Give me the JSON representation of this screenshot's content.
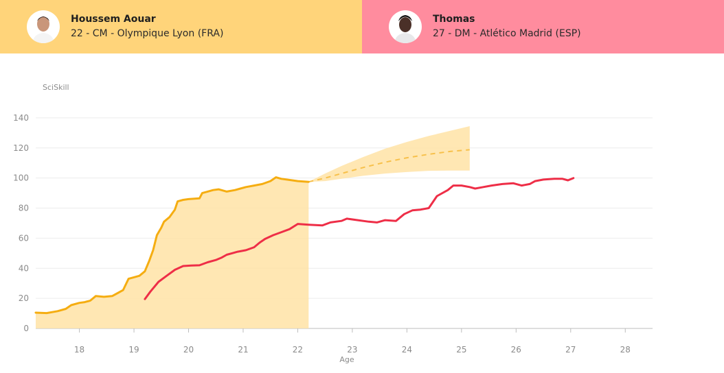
{
  "players": [
    {
      "name": "Houssem Aouar",
      "info": "22 - CM - Olympique Lyon (FRA)",
      "color": "#ffd47a",
      "avatar_icon": "player-photo-icon"
    },
    {
      "name": "Thomas",
      "info": "27 - DM - Atlético Madrid (ESP)",
      "color": "#ff8c9e",
      "avatar_icon": "player-photo-icon"
    }
  ],
  "chart_data": {
    "type": "line",
    "xlabel": "Age",
    "ylabel": "SciSkill",
    "xlim": [
      17.2,
      28.5
    ],
    "ylim": [
      0,
      150
    ],
    "x_ticks": [
      18,
      19,
      20,
      21,
      22,
      23,
      24,
      25,
      26,
      27,
      28
    ],
    "y_ticks": [
      0,
      20,
      40,
      60,
      80,
      100,
      120,
      140
    ],
    "grid": true,
    "series": [
      {
        "name": "Houssem Aouar",
        "color": "#f5ad11",
        "fill": true,
        "points": [
          [
            17.2,
            10.5
          ],
          [
            17.4,
            10.2
          ],
          [
            17.6,
            11.5
          ],
          [
            17.75,
            13
          ],
          [
            17.85,
            15.5
          ],
          [
            18.0,
            17
          ],
          [
            18.1,
            17.5
          ],
          [
            18.2,
            18.5
          ],
          [
            18.3,
            21.5
          ],
          [
            18.45,
            21
          ],
          [
            18.6,
            21.5
          ],
          [
            18.7,
            23.5
          ],
          [
            18.8,
            25.5
          ],
          [
            18.9,
            33
          ],
          [
            19.0,
            34
          ],
          [
            19.1,
            35
          ],
          [
            19.2,
            38
          ],
          [
            19.28,
            45
          ],
          [
            19.35,
            52
          ],
          [
            19.42,
            62
          ],
          [
            19.5,
            67
          ],
          [
            19.55,
            71
          ],
          [
            19.65,
            74
          ],
          [
            19.75,
            79
          ],
          [
            19.8,
            84.5
          ],
          [
            19.9,
            85.5
          ],
          [
            20.0,
            86
          ],
          [
            20.2,
            86.5
          ],
          [
            20.25,
            90
          ],
          [
            20.35,
            91
          ],
          [
            20.45,
            92
          ],
          [
            20.55,
            92.5
          ],
          [
            20.7,
            91
          ],
          [
            20.85,
            92
          ],
          [
            20.95,
            93
          ],
          [
            21.05,
            94
          ],
          [
            21.2,
            95
          ],
          [
            21.35,
            96
          ],
          [
            21.5,
            98
          ],
          [
            21.6,
            100.5
          ],
          [
            21.7,
            99.5
          ],
          [
            21.8,
            99
          ],
          [
            22.0,
            98
          ],
          [
            22.2,
            97.5
          ]
        ]
      },
      {
        "name": "Thomas",
        "color": "#ee2e47",
        "fill": false,
        "points": [
          [
            19.2,
            19.5
          ],
          [
            19.3,
            24.5
          ],
          [
            19.45,
            31
          ],
          [
            19.6,
            35
          ],
          [
            19.75,
            39
          ],
          [
            19.9,
            41.5
          ],
          [
            20.05,
            41.8
          ],
          [
            20.2,
            42
          ],
          [
            20.35,
            44
          ],
          [
            20.5,
            45.5
          ],
          [
            20.6,
            47
          ],
          [
            20.7,
            49
          ],
          [
            20.8,
            50
          ],
          [
            20.9,
            51
          ],
          [
            21.05,
            52
          ],
          [
            21.2,
            54
          ],
          [
            21.3,
            57
          ],
          [
            21.4,
            59.5
          ],
          [
            21.55,
            62
          ],
          [
            21.7,
            64
          ],
          [
            21.85,
            66
          ],
          [
            22.0,
            69.5
          ],
          [
            22.2,
            69
          ],
          [
            22.45,
            68.5
          ],
          [
            22.6,
            70.5
          ],
          [
            22.8,
            71.5
          ],
          [
            22.9,
            73
          ],
          [
            23.1,
            72
          ],
          [
            23.3,
            71
          ],
          [
            23.45,
            70.5
          ],
          [
            23.6,
            72
          ],
          [
            23.8,
            71.5
          ],
          [
            23.95,
            76
          ],
          [
            24.1,
            78.5
          ],
          [
            24.25,
            79
          ],
          [
            24.4,
            80
          ],
          [
            24.55,
            88
          ],
          [
            24.75,
            92
          ],
          [
            24.85,
            95
          ],
          [
            25.0,
            95
          ],
          [
            25.15,
            94
          ],
          [
            25.25,
            93
          ],
          [
            25.4,
            94
          ],
          [
            25.55,
            95
          ],
          [
            25.75,
            96
          ],
          [
            25.95,
            96.5
          ],
          [
            26.1,
            95
          ],
          [
            26.25,
            96
          ],
          [
            26.35,
            98
          ],
          [
            26.5,
            99
          ],
          [
            26.7,
            99.5
          ],
          [
            26.85,
            99.5
          ],
          [
            26.95,
            98.5
          ],
          [
            27.05,
            100
          ]
        ]
      }
    ],
    "projection": {
      "series": "Houssem Aouar",
      "median": [
        [
          22.2,
          97.5
        ],
        [
          22.5,
          100
        ],
        [
          22.8,
          103
        ],
        [
          23.2,
          107
        ],
        [
          23.6,
          110.5
        ],
        [
          24.0,
          113.5
        ],
        [
          24.4,
          115.8
        ],
        [
          24.8,
          117.7
        ],
        [
          25.15,
          118.8
        ]
      ],
      "upper": [
        [
          22.2,
          97.5
        ],
        [
          22.5,
          103
        ],
        [
          22.8,
          108
        ],
        [
          23.2,
          114
        ],
        [
          23.6,
          119.5
        ],
        [
          24.0,
          124
        ],
        [
          24.4,
          128
        ],
        [
          24.8,
          131.5
        ],
        [
          25.15,
          134.5
        ]
      ],
      "lower": [
        [
          22.2,
          97.5
        ],
        [
          22.5,
          98
        ],
        [
          22.8,
          99.5
        ],
        [
          23.2,
          101.5
        ],
        [
          23.6,
          103
        ],
        [
          24.0,
          104
        ],
        [
          24.4,
          104.8
        ],
        [
          24.8,
          105
        ],
        [
          25.15,
          105
        ]
      ]
    }
  }
}
